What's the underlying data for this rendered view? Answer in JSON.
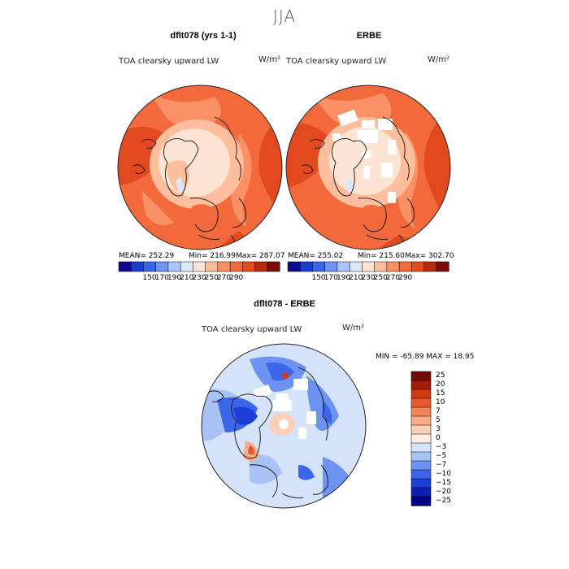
{
  "season": "JJA",
  "colors": {
    "abs_scale": [
      "#0a0a8c",
      "#1e3ccc",
      "#3a64e6",
      "#6f95f0",
      "#a9c4f5",
      "#dbe7fa",
      "#fde3d2",
      "#fcbe9c",
      "#f99066",
      "#f26a3c",
      "#e24a1e",
      "#b62a0c",
      "#7a0c04"
    ],
    "diff_scale": [
      "#00008a",
      "#0b1fb4",
      "#1c3fd8",
      "#3b66ea",
      "#6c92f2",
      "#a8c2f6",
      "#d4e2fa",
      "#fcebe0",
      "#fbcfb6",
      "#f7ab89",
      "#f2835a",
      "#e8572e",
      "#d23a12",
      "#a61b07",
      "#720b03"
    ]
  },
  "panels": {
    "left": {
      "title": "dflt078 (yrs 1-1)",
      "field": "TOA clearsky upward LW",
      "units": "W/m²",
      "mean": "MEAN= 252.29",
      "min": "Min= 216.99",
      "max": "Max= 287.07"
    },
    "right": {
      "title": "ERBE",
      "field": "TOA clearsky upward LW",
      "units": "W/m²",
      "mean": "MEAN= 255.02",
      "min": "Min= 215.60",
      "max": "Max= 302.70"
    },
    "diff": {
      "title": "dflt078 - ERBE",
      "field": "TOA clearsky upward LW",
      "units": "W/m²",
      "minmax": "MIN = -65.89 MAX =  18.95"
    }
  },
  "abs_ticks": [
    "150",
    "170",
    "190",
    "210",
    "230",
    "250",
    "270",
    "290"
  ],
  "diff_levels": [
    "25",
    "20",
    "15",
    "10",
    "7",
    "5",
    "3",
    "0",
    "−3",
    "−5",
    "−7",
    "−10",
    "−15",
    "−20",
    "−25"
  ]
}
